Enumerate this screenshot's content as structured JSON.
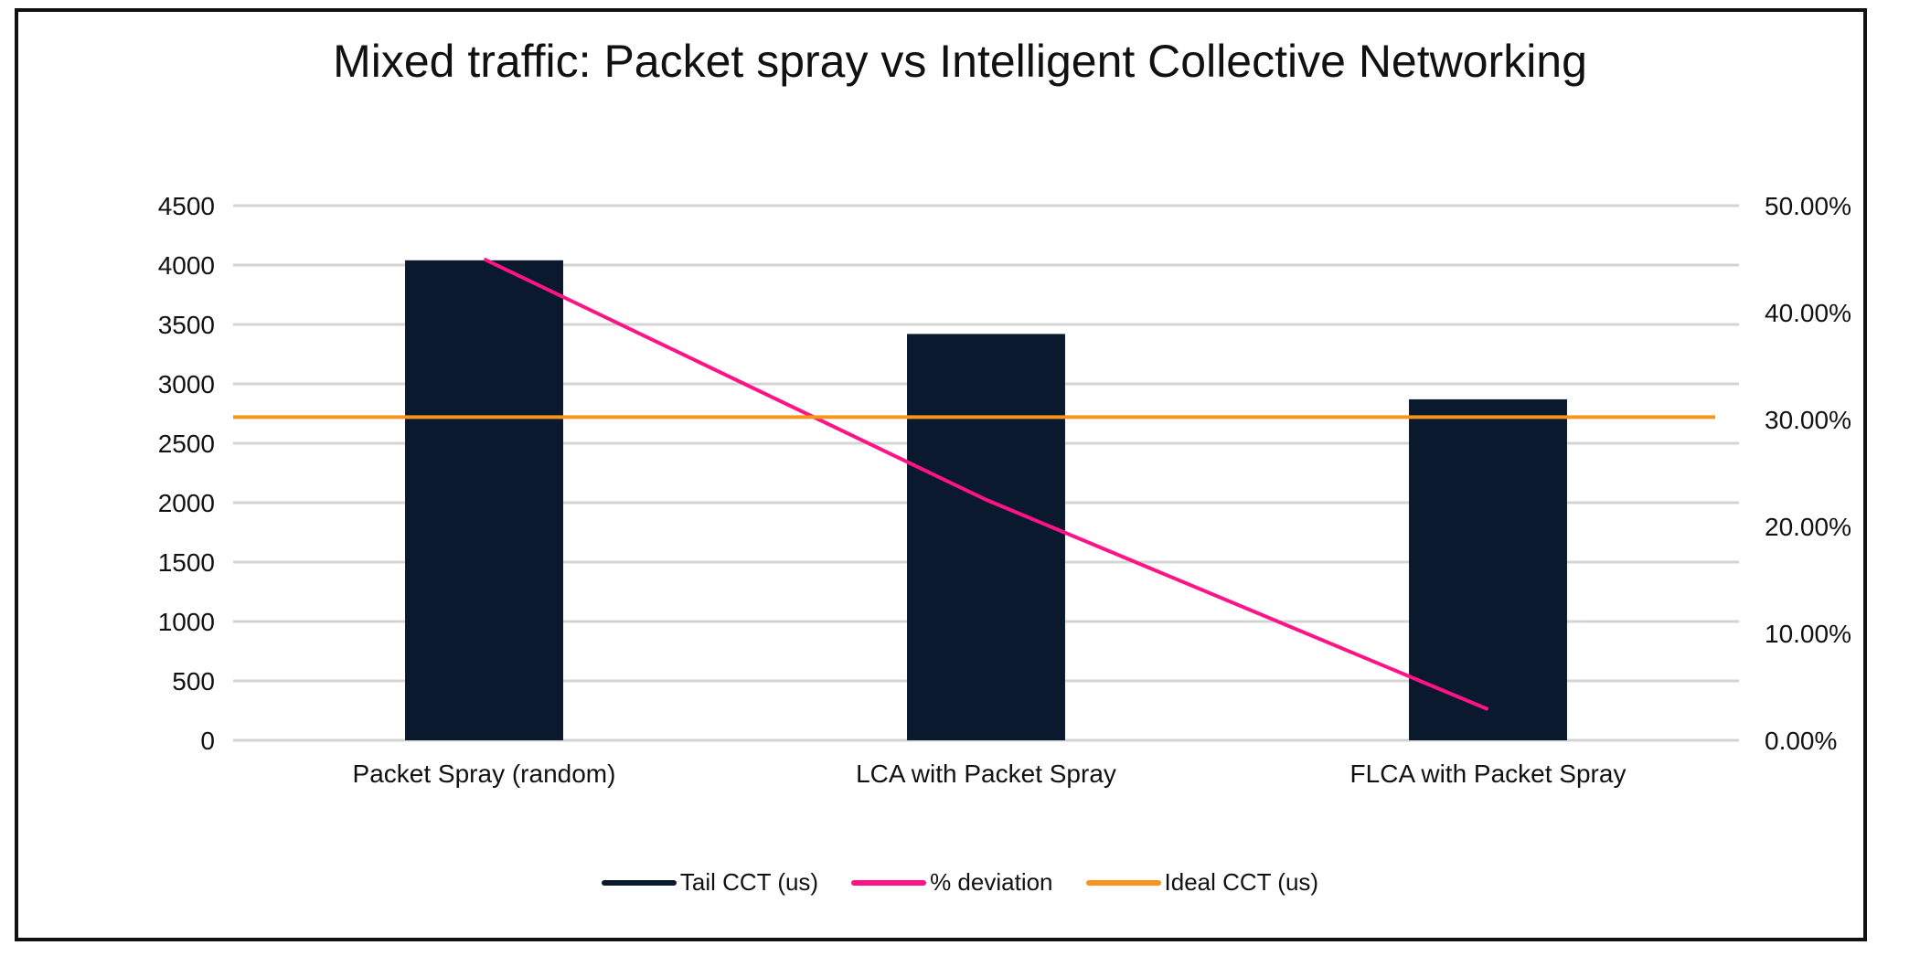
{
  "chart_data": {
    "type": "bar",
    "title": "Mixed traffic: Packet spray vs Intelligent Collective Networking",
    "categories": [
      "Packet Spray (random)",
      "LCA with Packet Spray",
      "FLCA with Packet Spray"
    ],
    "series": [
      {
        "name": "Tail CCT (us)",
        "type": "bar",
        "axis": "left",
        "color": "#0b192e",
        "values": [
          4040,
          3420,
          2870
        ]
      },
      {
        "name": "% deviation",
        "type": "line",
        "axis": "right",
        "color": "#ff1386",
        "values": [
          45.0,
          22.5,
          2.9
        ]
      },
      {
        "name": "Ideal CCT (us)",
        "type": "line",
        "axis": "left",
        "color": "#f7941d",
        "values": [
          2720,
          2720,
          2720
        ],
        "extends_full_width": true
      }
    ],
    "y_left": {
      "min": 0,
      "max": 4500,
      "ticks": [
        "0",
        "500",
        "1000",
        "1500",
        "2000",
        "2500",
        "3000",
        "3500",
        "4000",
        "4500"
      ]
    },
    "y_right": {
      "min": 0,
      "max": 50,
      "ticks": [
        "0.00%",
        "10.00%",
        "20.00%",
        "30.00%",
        "40.00%",
        "50.00%"
      ]
    },
    "xlabel": "",
    "ylabel": "",
    "grid": true,
    "legend_position": "bottom"
  }
}
